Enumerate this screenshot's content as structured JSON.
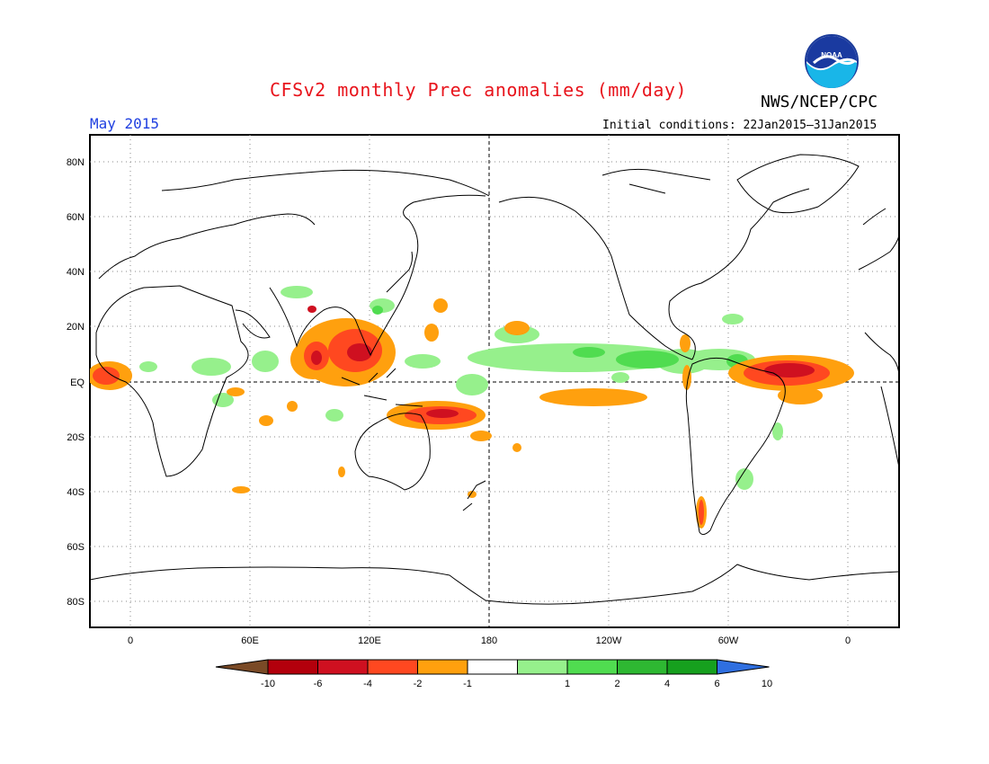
{
  "header": {
    "title": "CFSv2 monthly Prec anomalies (mm/day)",
    "period": "May 2015",
    "agency": "NWS/NCEP/CPC",
    "initial_conditions": "Initial conditions: 22Jan2015–31Jan2015",
    "logo_text": "NOAA"
  },
  "map": {
    "lat_labels": [
      "80N",
      "60N",
      "40N",
      "20N",
      "EQ",
      "20S",
      "40S",
      "60S",
      "80S"
    ],
    "lon_labels": [
      "0",
      "60E",
      "120E",
      "180",
      "120W",
      "60W",
      "0"
    ]
  },
  "colorbar": {
    "tick_labels": [
      "-10",
      "-6",
      "-4",
      "-2",
      "-1",
      "1",
      "2",
      "4",
      "6",
      "10"
    ],
    "colors": [
      "#7a4a26",
      "#b3000c",
      "#cf1020",
      "#ff4820",
      "#ffa00e",
      "#ffffff",
      "#96f08c",
      "#50dc50",
      "#2eb832",
      "#16a01e",
      "#2f6fe0"
    ]
  }
}
